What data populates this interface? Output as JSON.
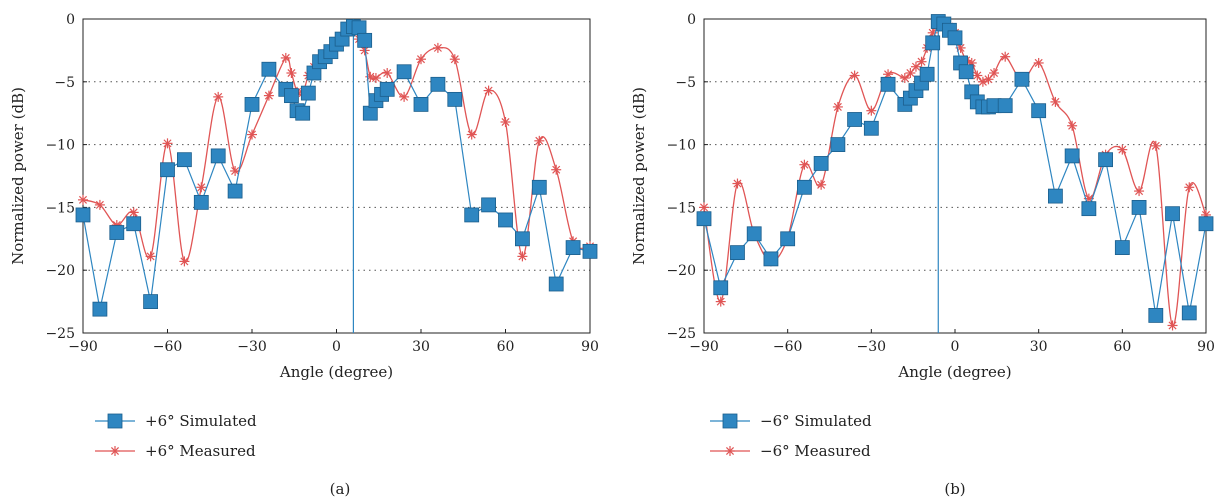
{
  "colors": {
    "simulated": "#2e86c1",
    "measured": "#e05555",
    "grid": "#555555"
  },
  "chart_data": [
    {
      "type": "line",
      "caption": "(a)",
      "xlabel": "Angle (degree)",
      "ylabel": "Normalized power (dB)",
      "xlim": [
        -90,
        90
      ],
      "ylim": [
        -25,
        0
      ],
      "xticks": [
        -90,
        -60,
        -30,
        0,
        30,
        60,
        90
      ],
      "yticks": [
        0,
        -5,
        -10,
        -15,
        -20,
        -25
      ],
      "xtick_labels": [
        "−90",
        "−60",
        "−30",
        "0",
        "30",
        "60",
        "90"
      ],
      "ytick_labels": [
        "0",
        "−5",
        "−10",
        "−15",
        "−20",
        "−25"
      ],
      "grid": "horizontal dotted",
      "steer_angle": 6,
      "legend": [
        "+6° Simulated",
        "+6° Measured"
      ],
      "series": [
        {
          "name": "+6° Simulated",
          "marker": "square",
          "x": [
            -90,
            -84,
            -78,
            -72,
            -66,
            -60,
            -54,
            -48,
            -42,
            -36,
            -30,
            -24,
            -18,
            -16,
            -14,
            -12,
            -10,
            -8,
            -6,
            -4,
            -2,
            0,
            2,
            4,
            6,
            8,
            10,
            12,
            14,
            16,
            18,
            24,
            30,
            36,
            42,
            48,
            54,
            60,
            66,
            72,
            78,
            84,
            90
          ],
          "y": [
            -15.6,
            -23.1,
            -17.0,
            -16.3,
            -22.5,
            -12.0,
            -11.2,
            -14.6,
            -10.9,
            -13.7,
            -6.8,
            -4.0,
            -5.6,
            -6.1,
            -7.3,
            -7.5,
            -5.9,
            -4.3,
            -3.4,
            -3.0,
            -2.6,
            -2.0,
            -1.6,
            -0.8,
            -0.6,
            -0.7,
            -1.7,
            -7.5,
            -6.5,
            -6.0,
            -5.6,
            -4.2,
            -6.8,
            -5.2,
            -6.4,
            -15.6,
            -14.8,
            -16.0,
            -17.5,
            -13.4,
            -21.1,
            -18.2,
            -18.5
          ]
        },
        {
          "name": "+6° Measured",
          "marker": "asterisk",
          "x": [
            -90,
            -84,
            -78,
            -72,
            -66,
            -60,
            -54,
            -48,
            -42,
            -36,
            -30,
            -24,
            -18,
            -16,
            -14,
            -12,
            -10,
            -8,
            -6,
            -4,
            -2,
            0,
            2,
            4,
            6,
            8,
            10,
            12,
            14,
            18,
            24,
            30,
            36,
            42,
            48,
            54,
            60,
            66,
            72,
            78,
            84,
            90
          ],
          "y": [
            -14.4,
            -14.8,
            -16.4,
            -15.4,
            -18.9,
            -9.9,
            -19.3,
            -13.4,
            -6.2,
            -12.1,
            -9.2,
            -6.1,
            -3.1,
            -4.3,
            -5.8,
            -5.9,
            -4.5,
            -3.8,
            -3.4,
            -2.9,
            -2.4,
            -2.0,
            -1.7,
            -1.1,
            -0.5,
            -1.6,
            -2.5,
            -4.6,
            -4.7,
            -4.3,
            -6.2,
            -3.2,
            -2.3,
            -3.2,
            -9.2,
            -5.7,
            -8.2,
            -18.9,
            -9.7,
            -12.0,
            -17.7,
            -18.1
          ]
        }
      ]
    },
    {
      "type": "line",
      "caption": "(b)",
      "xlabel": "Angle (degree)",
      "ylabel": "Normalized power (dB)",
      "xlim": [
        -90,
        90
      ],
      "ylim": [
        -25,
        0
      ],
      "xticks": [
        -90,
        -60,
        -30,
        0,
        30,
        60,
        90
      ],
      "yticks": [
        0,
        -5,
        -10,
        -15,
        -20,
        -25
      ],
      "xtick_labels": [
        "−90",
        "−60",
        "−30",
        "0",
        "30",
        "60",
        "90"
      ],
      "ytick_labels": [
        "0",
        "−5",
        "−10",
        "−15",
        "−20",
        "−25"
      ],
      "grid": "horizontal dotted",
      "steer_angle": -6,
      "legend": [
        "−6° Simulated",
        "−6° Measured"
      ],
      "series": [
        {
          "name": "−6° Simulated",
          "marker": "square",
          "x": [
            -90,
            -84,
            -78,
            -72,
            -66,
            -60,
            -54,
            -48,
            -42,
            -36,
            -30,
            -24,
            -18,
            -16,
            -14,
            -12,
            -10,
            -8,
            -6,
            -4,
            -2,
            0,
            2,
            4,
            6,
            8,
            10,
            12,
            14,
            18,
            24,
            30,
            36,
            42,
            48,
            54,
            60,
            66,
            72,
            78,
            84,
            90
          ],
          "y": [
            -15.9,
            -21.4,
            -18.6,
            -17.1,
            -19.1,
            -17.5,
            -13.4,
            -11.5,
            -10.0,
            -8.0,
            -8.7,
            -5.2,
            -6.8,
            -6.3,
            -5.7,
            -5.1,
            -4.4,
            -1.9,
            -0.2,
            -0.4,
            -0.9,
            -1.5,
            -3.5,
            -4.2,
            -5.8,
            -6.6,
            -7.0,
            -7.0,
            -6.9,
            -6.9,
            -4.8,
            -7.3,
            -14.1,
            -10.9,
            -15.1,
            -11.2,
            -18.2,
            -15.0,
            -23.6,
            -15.5,
            -23.4,
            -16.3
          ]
        },
        {
          "name": "−6° Measured",
          "marker": "asterisk",
          "x": [
            -90,
            -84,
            -78,
            -72,
            -66,
            -60,
            -54,
            -48,
            -42,
            -36,
            -30,
            -24,
            -18,
            -16,
            -14,
            -12,
            -10,
            -8,
            -6,
            -4,
            -2,
            0,
            2,
            4,
            6,
            8,
            10,
            12,
            14,
            18,
            24,
            30,
            36,
            42,
            48,
            54,
            60,
            66,
            72,
            78,
            84,
            90
          ],
          "y": [
            -15.0,
            -22.5,
            -13.1,
            -17.1,
            -19.3,
            -17.4,
            -11.6,
            -13.2,
            -7.0,
            -4.5,
            -7.3,
            -4.4,
            -4.7,
            -4.3,
            -3.8,
            -3.4,
            -2.3,
            -1.1,
            -0.1,
            -0.3,
            -0.6,
            -1.1,
            -2.3,
            -3.3,
            -3.5,
            -4.5,
            -5.0,
            -4.8,
            -4.3,
            -3.0,
            -4.9,
            -3.5,
            -6.6,
            -8.5,
            -14.3,
            -10.8,
            -10.4,
            -13.7,
            -10.1,
            -24.4,
            -13.4,
            -15.6
          ]
        }
      ]
    }
  ]
}
